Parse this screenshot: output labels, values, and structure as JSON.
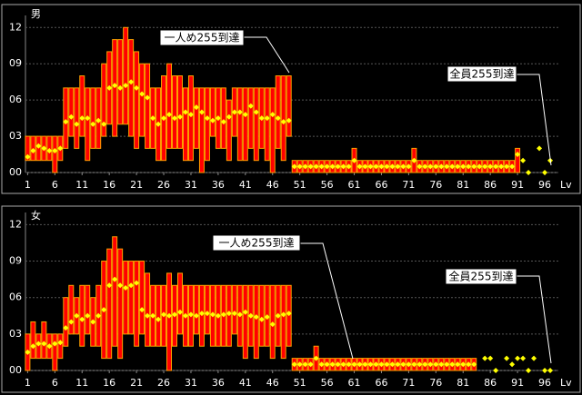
{
  "chart_data": [
    {
      "type": "range",
      "title": "男",
      "x_label": "Lv",
      "low_color": "#ff0000",
      "edge_color": "#ffa000",
      "mean_color": "#ffff00",
      "grid": true,
      "xlim": [
        0.6,
        98.5
      ],
      "xticks": [
        1,
        6,
        11,
        16,
        21,
        26,
        31,
        36,
        41,
        46,
        51,
        56,
        61,
        66,
        71,
        76,
        81,
        86,
        91,
        96
      ],
      "ylim": [
        0,
        13
      ],
      "yticks": [
        {
          "value": 0,
          "label": "00"
        },
        {
          "value": 3,
          "label": "03"
        },
        {
          "value": 6,
          "label": "06"
        },
        {
          "value": 9,
          "label": "09"
        },
        {
          "value": 12,
          "label": "12"
        }
      ],
      "annotations": [
        "一人め255到達",
        "全員255到達"
      ],
      "x": [
        1,
        2,
        3,
        4,
        5,
        6,
        7,
        8,
        9,
        10,
        11,
        12,
        13,
        14,
        15,
        16,
        17,
        18,
        19,
        20,
        21,
        22,
        23,
        24,
        25,
        26,
        27,
        28,
        29,
        30,
        31,
        32,
        33,
        34,
        35,
        36,
        37,
        38,
        39,
        40,
        41,
        42,
        43,
        44,
        45,
        46,
        47,
        48,
        49,
        50,
        51,
        52,
        53,
        54,
        55,
        56,
        57,
        58,
        59,
        60,
        61,
        62,
        63,
        64,
        65,
        66,
        67,
        68,
        69,
        70,
        71,
        72,
        73,
        74,
        75,
        76,
        77,
        78,
        79,
        80,
        81,
        82,
        83,
        84,
        85,
        86,
        87,
        88,
        89,
        90,
        91,
        92,
        93,
        94,
        95,
        96,
        97
      ],
      "low": [
        1,
        1,
        1,
        1,
        1,
        0,
        1,
        2,
        3,
        2,
        3,
        1,
        2,
        2,
        3,
        4,
        3,
        4,
        4,
        3,
        2,
        3,
        2,
        2,
        1,
        1,
        2,
        2,
        2,
        1,
        1,
        2,
        0,
        1,
        3,
        2,
        2,
        1,
        3,
        1,
        1,
        2,
        1,
        2,
        1,
        0,
        2,
        1,
        3,
        0,
        0,
        0,
        0,
        0,
        0,
        0,
        0,
        0,
        0,
        0,
        0,
        0,
        0,
        0,
        0,
        0,
        0,
        0,
        0,
        0,
        0,
        0,
        0,
        0,
        0,
        0,
        0,
        0,
        0,
        0,
        0,
        0,
        0,
        0,
        0,
        0,
        0,
        0,
        0,
        0,
        0,
        null,
        null,
        null,
        null,
        null,
        null
      ],
      "high": [
        3,
        3,
        3,
        3,
        3,
        3,
        3,
        7,
        7,
        7,
        8,
        7,
        7,
        7,
        9,
        10,
        11,
        11,
        12,
        11,
        10,
        9,
        9,
        7,
        7,
        8,
        9,
        8,
        8,
        7,
        8,
        7,
        7,
        7,
        7,
        7,
        7,
        6,
        7,
        7,
        7,
        7,
        7,
        7,
        7,
        7,
        8,
        8,
        8,
        1,
        1,
        1,
        1,
        1,
        1,
        1,
        1,
        1,
        1,
        1,
        2,
        1,
        1,
        1,
        1,
        1,
        1,
        1,
        1,
        1,
        1,
        2,
        1,
        1,
        1,
        1,
        1,
        1,
        1,
        1,
        1,
        1,
        1,
        1,
        1,
        1,
        1,
        1,
        1,
        1,
        2,
        null,
        null,
        null,
        null,
        null,
        null
      ],
      "mean": [
        1.3,
        1.8,
        2.2,
        2,
        1.8,
        1.8,
        2,
        4.2,
        4.6,
        4,
        4.5,
        4.5,
        4,
        4.3,
        4,
        7,
        7.2,
        7,
        7.2,
        7.5,
        7,
        6.5,
        6.2,
        4.5,
        4,
        4.5,
        4.8,
        4.5,
        4.6,
        5,
        4.8,
        5.4,
        5,
        4.5,
        4.3,
        4.5,
        4.2,
        4.6,
        5,
        5,
        4.8,
        5.5,
        5,
        4.5,
        4.5,
        4.8,
        4.5,
        4.2,
        4.3,
        0.5,
        0.5,
        0.5,
        0.5,
        0.5,
        0.5,
        0.5,
        0.5,
        0.5,
        0.5,
        0.5,
        1,
        0.5,
        0.5,
        0.5,
        0.5,
        0.5,
        0.5,
        0.5,
        0.5,
        0.5,
        0.5,
        1,
        0.5,
        0.5,
        0.5,
        0.5,
        0.5,
        0.5,
        0.5,
        0.5,
        0.5,
        0.5,
        0.5,
        0.5,
        0.5,
        0.5,
        0.5,
        0.5,
        0.5,
        0.5,
        1.5,
        1,
        0,
        null,
        2,
        0,
        1
      ]
    },
    {
      "type": "range",
      "title": "女",
      "x_label": "Lv",
      "low_color": "#ff0000",
      "edge_color": "#ffa000",
      "mean_color": "#ffff00",
      "grid": true,
      "xlim": [
        0.6,
        98.5
      ],
      "xticks": [
        1,
        6,
        11,
        16,
        21,
        26,
        31,
        36,
        41,
        46,
        51,
        56,
        61,
        66,
        71,
        76,
        81,
        86,
        91,
        96
      ],
      "ylim": [
        0,
        13
      ],
      "yticks": [
        {
          "value": 0,
          "label": "00"
        },
        {
          "value": 3,
          "label": "03"
        },
        {
          "value": 6,
          "label": "06"
        },
        {
          "value": 9,
          "label": "09"
        },
        {
          "value": 12,
          "label": "12"
        }
      ],
      "annotations": [
        "一人め255到達",
        "全員255到達"
      ],
      "x": [
        1,
        2,
        3,
        4,
        5,
        6,
        7,
        8,
        9,
        10,
        11,
        12,
        13,
        14,
        15,
        16,
        17,
        18,
        19,
        20,
        21,
        22,
        23,
        24,
        25,
        26,
        27,
        28,
        29,
        30,
        31,
        32,
        33,
        34,
        35,
        36,
        37,
        38,
        39,
        40,
        41,
        42,
        43,
        44,
        45,
        46,
        47,
        48,
        49,
        50,
        51,
        52,
        53,
        54,
        55,
        56,
        57,
        58,
        59,
        60,
        61,
        62,
        63,
        64,
        65,
        66,
        67,
        68,
        69,
        70,
        71,
        72,
        73,
        74,
        75,
        76,
        77,
        78,
        79,
        80,
        81,
        82,
        83,
        84,
        85,
        86,
        87,
        88,
        89,
        90,
        91,
        92,
        93,
        94,
        95,
        96,
        97
      ],
      "low": [
        0,
        1,
        1,
        1,
        1,
        0,
        1,
        2,
        3,
        3,
        2,
        3,
        2,
        2,
        1,
        1,
        2,
        1,
        3,
        3,
        2,
        3,
        2,
        2,
        2,
        2,
        0,
        2,
        3,
        2,
        2,
        3,
        2,
        3,
        2,
        2,
        2,
        2,
        3,
        2,
        1,
        2,
        1,
        2,
        2,
        1,
        2,
        1,
        2,
        0,
        0,
        0,
        0,
        0,
        0,
        0,
        0,
        0,
        0,
        0,
        0,
        0,
        0,
        0,
        0,
        0,
        0,
        0,
        0,
        0,
        0,
        0,
        0,
        0,
        0,
        0,
        0,
        0,
        0,
        0,
        0,
        0,
        0,
        null,
        null,
        null,
        null,
        null,
        null,
        null,
        null,
        null,
        null,
        null,
        null,
        null,
        null
      ],
      "high": [
        3,
        4,
        3,
        4,
        3,
        3,
        3,
        6,
        7,
        6,
        7,
        7,
        6,
        7,
        9,
        10,
        11,
        10,
        9,
        9,
        9,
        9,
        8,
        7,
        7,
        7,
        8,
        7,
        8,
        7,
        7,
        7,
        7,
        7,
        7,
        7,
        7,
        7,
        7,
        7,
        7,
        7,
        7,
        7,
        7,
        7,
        7,
        7,
        7,
        1,
        1,
        1,
        1,
        2,
        1,
        1,
        1,
        1,
        1,
        1,
        1,
        1,
        1,
        1,
        1,
        1,
        1,
        1,
        1,
        1,
        1,
        1,
        1,
        1,
        1,
        1,
        1,
        1,
        1,
        1,
        1,
        1,
        1,
        null,
        null,
        null,
        null,
        null,
        null,
        null,
        null,
        null,
        null,
        null,
        null,
        null,
        null
      ],
      "mean": [
        1.5,
        2,
        2.2,
        2.2,
        2,
        2.2,
        2.3,
        3.5,
        4,
        4.5,
        4.2,
        4.5,
        4,
        4.5,
        5,
        7,
        7.5,
        7,
        6.8,
        7,
        7.2,
        5,
        4.5,
        4.5,
        4.2,
        4.6,
        4.5,
        4.6,
        4.8,
        4.5,
        4.6,
        4.5,
        4.7,
        4.7,
        4.6,
        4.5,
        4.6,
        4.7,
        4.7,
        4.6,
        4.8,
        4.5,
        4.4,
        4.2,
        4.4,
        3.8,
        4.5,
        4.6,
        4.7,
        0.5,
        0.5,
        0.5,
        0.5,
        1,
        0.5,
        0.5,
        0.5,
        0.5,
        0.5,
        0.5,
        0.5,
        0.5,
        0.5,
        0.5,
        0.5,
        0.5,
        0.5,
        0.5,
        0.5,
        0.5,
        0.5,
        0.5,
        0.5,
        0.5,
        0.5,
        0.5,
        0.5,
        0.5,
        0.5,
        0.5,
        0.5,
        0.5,
        0.5,
        null,
        1,
        1,
        0,
        null,
        1,
        0.5,
        1,
        1,
        0,
        1,
        null,
        0,
        0
      ]
    }
  ]
}
